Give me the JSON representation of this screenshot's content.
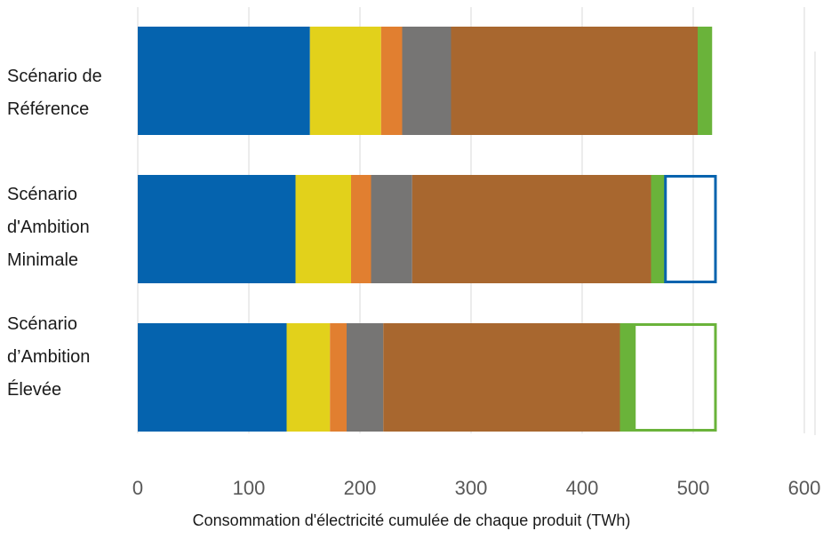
{
  "chart_data": {
    "type": "bar",
    "orientation": "horizontal",
    "stacked": true,
    "xlabel": "Consommation d'électricité cumulée de chaque produit (TWh)",
    "xlim": [
      0,
      600
    ],
    "xticks": [
      "0",
      "100",
      "200",
      "300",
      "400",
      "500",
      "600"
    ],
    "grid": true,
    "categories": [
      "Scénario de\nRéférence",
      "Scénario\nd'Ambition\nMinimale",
      "Scénario\nd’Ambition\nÉlevée"
    ],
    "series": [
      {
        "color": "#0563AE",
        "values": [
          155,
          142,
          134
        ]
      },
      {
        "color": "#E2D11B",
        "values": [
          64,
          50,
          39
        ]
      },
      {
        "color": "#E17F30",
        "values": [
          19,
          18,
          15
        ]
      },
      {
        "color": "#767574",
        "values": [
          44,
          37,
          33
        ]
      },
      {
        "color": "#A8672F",
        "values": [
          222,
          215,
          213
        ]
      },
      {
        "color": "#6AB33A",
        "values": [
          13,
          13,
          13
        ]
      }
    ],
    "savings_outlines": [
      {
        "category_index": 1,
        "from": 475,
        "to": 520,
        "color": "#0563AE"
      },
      {
        "category_index": 2,
        "from": 447,
        "to": 520,
        "color": "#6AB33A"
      }
    ]
  }
}
